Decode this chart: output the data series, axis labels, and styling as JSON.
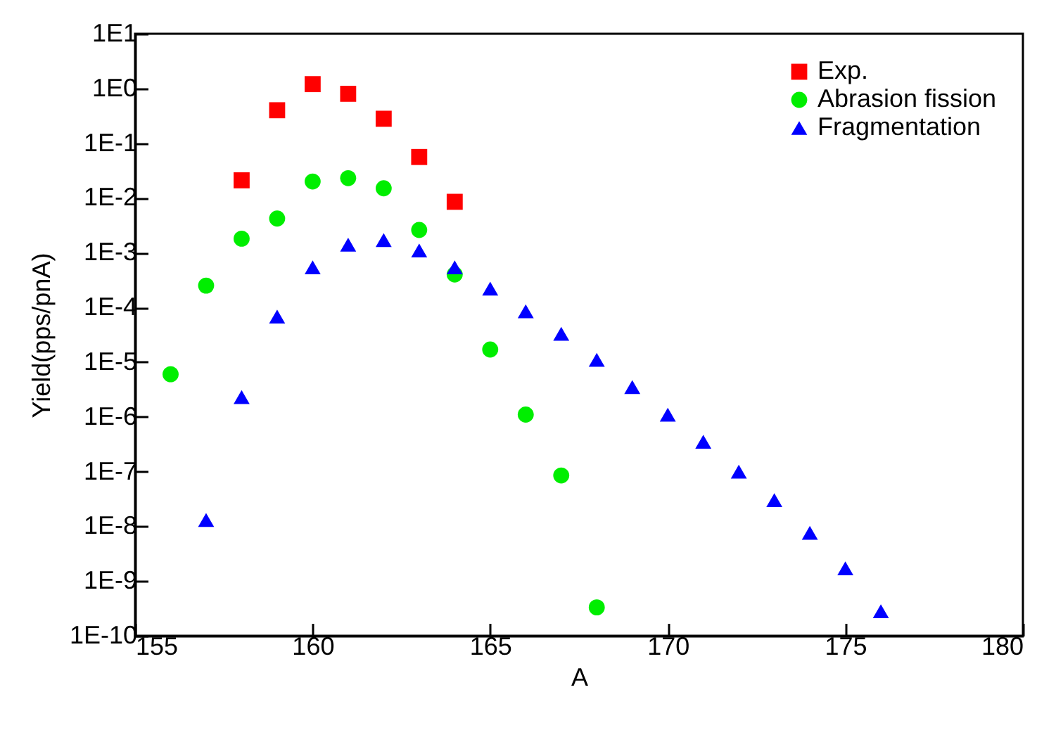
{
  "chart_data": {
    "type": "scatter",
    "xlabel": "A",
    "ylabel": "Yield(pps/pnA)",
    "log": "y",
    "grid": false,
    "legend": "top right",
    "xlim": [
      155,
      180
    ],
    "xticks": [
      155,
      160,
      165,
      170,
      175,
      180
    ],
    "ylim": [
      1e-10,
      10
    ],
    "yticks": [
      {
        "value": 10,
        "label": "1E1"
      },
      {
        "value": 1,
        "label": "1E0"
      },
      {
        "value": 0.1,
        "label": "1E-1"
      },
      {
        "value": 0.01,
        "label": "1E-2"
      },
      {
        "value": 0.001,
        "label": "1E-3"
      },
      {
        "value": 0.0001,
        "label": "1E-4"
      },
      {
        "value": 1e-05,
        "label": "1E-5"
      },
      {
        "value": 1e-06,
        "label": "1E-6"
      },
      {
        "value": 1e-07,
        "label": "1E-7"
      },
      {
        "value": 1e-08,
        "label": "1E-8"
      },
      {
        "value": 1e-09,
        "label": "1E-9"
      },
      {
        "value": 1e-10,
        "label": "1E-10"
      }
    ],
    "series": [
      {
        "name": "Exp.",
        "color": "#ff0000",
        "marker": "square",
        "x": [
          158,
          159,
          160,
          161,
          162,
          163,
          164
        ],
        "values": [
          0.021,
          0.4,
          1.2,
          0.8,
          0.28,
          0.056,
          0.0085
        ]
      },
      {
        "name": "Abrasion fission",
        "color": "#00ee00",
        "marker": "circle",
        "x": [
          156,
          157,
          158,
          159,
          160,
          161,
          162,
          163,
          164,
          165,
          166,
          167,
          168
        ],
        "values": [
          6e-06,
          0.00025,
          0.0018,
          0.0042,
          0.02,
          0.023,
          0.015,
          0.0026,
          0.0004,
          1.7e-05,
          1.1e-06,
          8.5e-08,
          3.3e-10
        ]
      },
      {
        "name": "Fragmentation",
        "color": "#0000ff",
        "marker": "triangle",
        "x": [
          157,
          158,
          159,
          160,
          161,
          162,
          163,
          164,
          165,
          166,
          167,
          168,
          169,
          170,
          171,
          172,
          173,
          174,
          175,
          176
        ],
        "values": [
          1.3e-08,
          2.3e-06,
          6.8e-05,
          0.00054,
          0.0014,
          0.0017,
          0.0011,
          0.00054,
          0.00022,
          8.5e-05,
          3.3e-05,
          1.1e-05,
          3.5e-06,
          1.1e-06,
          3.5e-07,
          1e-07,
          3e-08,
          7.6e-09,
          1.7e-09,
          2.8e-10
        ]
      }
    ]
  }
}
